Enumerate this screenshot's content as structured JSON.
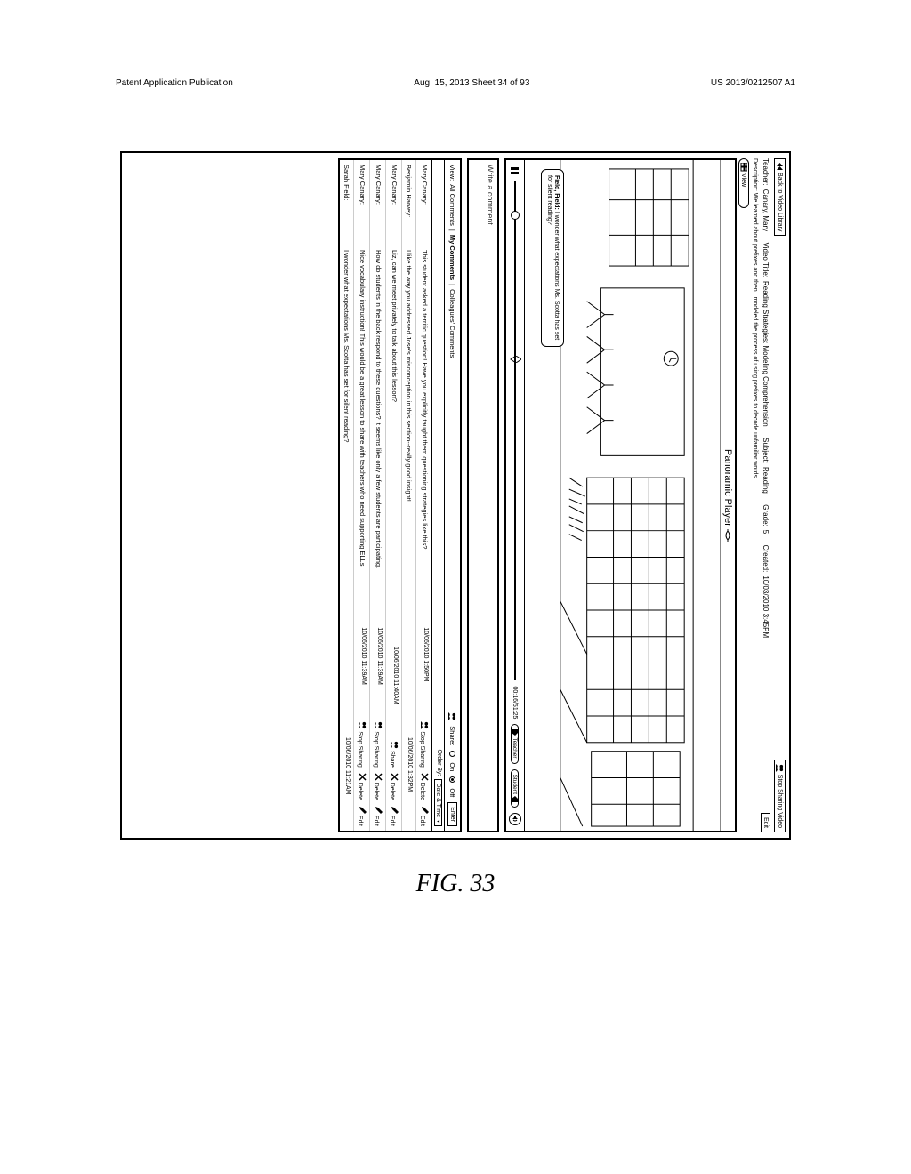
{
  "patent": {
    "header_left": "Patent Application Publication",
    "header_mid": "Aug. 15, 2013  Sheet 34 of 93",
    "header_right": "US 2013/0212507 A1",
    "figure_label": "FIG. 33"
  },
  "topbar": {
    "back_label": "Back to Video Library",
    "stop_share_label": "Stop Sharing Video"
  },
  "meta": {
    "teacher_label": "Teacher:",
    "teacher_value": "Canary, Mary",
    "title_label": "Video Title:",
    "title_value": "Reading Strategies: Modeling Comprehension",
    "subject_label": "Subject:",
    "subject_value": "Reading",
    "grade_label": "Grade:",
    "grade_value": "5",
    "created_label": "Created:",
    "created_value": "10/03/2010 3:45PM",
    "edit_label": "Edit"
  },
  "description": {
    "label": "Description:",
    "value": "We learned about prefixes and then I modeled the process of using prefixes to decode unfamiliar words."
  },
  "view_toggle": {
    "label": "View"
  },
  "player": {
    "title": "Panoramic Player",
    "bubble_author": "Field, Field:",
    "bubble_text": "I wonder what expectations Ms. Scotta has set for silent reading?",
    "timecode": "00:16/51:25",
    "tag_teacher": "Teacher",
    "tag_student": "Student",
    "volume_icon": "vol"
  },
  "comment_input": {
    "placeholder": "Write a comment..."
  },
  "filters": {
    "view_label": "View:",
    "opt_all": "All Comments",
    "opt_my": "My Comments",
    "opt_colleagues": "Colleagues' Comments",
    "share_label": "Share:",
    "on_label": "On",
    "off_label": "Off",
    "enter_label": "Enter",
    "order_label": "Order By:",
    "order_value": "Date & Time"
  },
  "comments": [
    {
      "author": "Mary Canary:",
      "body": "This student asked a terrific question! Have you explicitly taught them questioning strategies like this?",
      "ts": "10/06/2010 1:50PM",
      "share": "Stop Sharing",
      "del": "Delete",
      "edit": "Edit"
    },
    {
      "author": "Benjamin Harvey:",
      "body": "I like the way you addressed Jose's misconception in this section--really good insight!",
      "ts": "10/06/2010 1:32PM",
      "share": "",
      "del": "",
      "edit": ""
    },
    {
      "author": "Mary Canary:",
      "body": "Liz, can we meet privately to talk about this lesson?",
      "ts": "10/06/2010 11:40AM",
      "share": "Share",
      "del": "Delete",
      "edit": "Edit"
    },
    {
      "author": "Mary Canary:",
      "body": "How do students in the back respond to these questions? It seems like only a few students are participating.",
      "ts": "10/06/2010 11:39AM",
      "share": "Stop Sharing",
      "del": "Delete",
      "edit": "Edit"
    },
    {
      "author": "Mary Canary:",
      "body": "Nice vocabulary instruction! This would be a great lesson to share with teachers who need supporting ELLs",
      "ts": "10/06/2010 11:39AM",
      "share": "Stop Sharing",
      "del": "Delete",
      "edit": "Edit"
    },
    {
      "author": "Sarah Field:",
      "body": "I wonder what expectations Ms. Scotta has set for silent reading?",
      "ts": "10/06/2010 11:21AM",
      "share": "",
      "del": "",
      "edit": ""
    }
  ]
}
